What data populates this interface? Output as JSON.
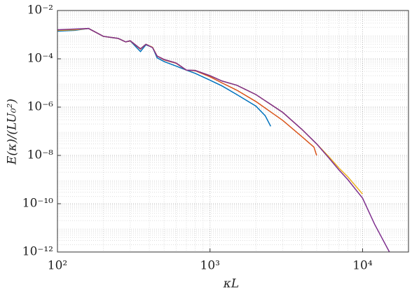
{
  "chart_data": {
    "type": "line",
    "x_label": "κL",
    "y_label": "E(κ)/(LU₀²)",
    "xscale": "log",
    "yscale": "log",
    "grid": true,
    "minor_grid": true,
    "xlim": [
      100,
      20000
    ],
    "xticks": [
      {
        "value": 100,
        "label": "10²"
      },
      {
        "value": 1000,
        "label": "10³"
      },
      {
        "value": 10000,
        "label": "10⁴"
      }
    ],
    "ylim": [
      1e-12,
      0.01
    ],
    "yticks": [
      {
        "value": 1e-12,
        "label": "10⁻¹²"
      },
      {
        "value": 1e-10,
        "label": "10⁻¹⁰"
      },
      {
        "value": 1e-08,
        "label": "10⁻⁸"
      },
      {
        "value": 1e-06,
        "label": "10⁻⁶"
      },
      {
        "value": 0.0001,
        "label": "10⁻⁴"
      },
      {
        "value": 0.01,
        "label": "10⁻²"
      }
    ],
    "series": [
      {
        "color": "#0072BD",
        "x": [
          100,
          130,
          160,
          200,
          250,
          280,
          300,
          350,
          380,
          420,
          450,
          500,
          600,
          700,
          800,
          1000,
          1200,
          1500,
          2000,
          2300,
          2500
        ],
        "values": [
          0.0014,
          0.0015,
          0.0018,
          0.00085,
          0.0007,
          0.0005,
          0.00055,
          0.0002,
          0.00038,
          0.0003,
          0.00011,
          7.7e-05,
          5e-05,
          3.4e-05,
          2.5e-05,
          1.3e-05,
          7.5e-06,
          3.3e-06,
          1.1e-06,
          4.4e-07,
          1.6e-07
        ]
      },
      {
        "color": "#D95319",
        "x": [
          100,
          130,
          160,
          200,
          250,
          280,
          300,
          350,
          380,
          420,
          450,
          500,
          600,
          700,
          800,
          1000,
          1200,
          1500,
          2000,
          3000,
          4000,
          4800,
          5000
        ],
        "values": [
          0.0015,
          0.0016,
          0.0018,
          0.00085,
          0.0007,
          0.0005,
          0.00055,
          0.00025,
          0.0004,
          0.0003,
          0.00013,
          9e-05,
          6.5e-05,
          3.4e-05,
          3.2e-05,
          1.8e-05,
          1e-05,
          5e-06,
          1.7e-06,
          2.8e-07,
          6e-08,
          2.2e-08,
          1e-08
        ]
      },
      {
        "color": "#EDB120",
        "x": [
          100,
          130,
          160,
          200,
          250,
          280,
          300,
          350,
          380,
          420,
          450,
          500,
          600,
          700,
          800,
          1000,
          1200,
          1500,
          2000,
          3000,
          4000,
          5000,
          6000,
          7000,
          8000,
          10000
        ],
        "values": [
          0.0015,
          0.0016,
          0.0018,
          0.00085,
          0.0007,
          0.0005,
          0.00056,
          0.00026,
          0.0004,
          0.0003,
          0.00013,
          9.4e-05,
          6.7e-05,
          3.4e-05,
          3.3e-05,
          2e-05,
          1.2e-05,
          8e-06,
          3.3e-06,
          6e-07,
          1.2e-07,
          3e-08,
          9e-09,
          3e-09,
          1.3e-09,
          2.5e-10
        ]
      },
      {
        "color": "#7E2F8E",
        "x": [
          100,
          130,
          160,
          200,
          250,
          280,
          300,
          350,
          380,
          420,
          450,
          500,
          600,
          700,
          800,
          1000,
          1200,
          1500,
          2000,
          3000,
          4000,
          5000,
          6000,
          7000,
          8000,
          10000,
          12000,
          15000
        ],
        "values": [
          0.0016,
          0.0017,
          0.0018,
          0.00085,
          0.0007,
          0.0005,
          0.00056,
          0.00026,
          0.0004,
          0.00029,
          0.00013,
          9.4e-05,
          6.7e-05,
          3.4e-05,
          3.3e-05,
          2e-05,
          1.2e-05,
          8e-06,
          3.3e-06,
          6e-07,
          1.2e-07,
          3e-08,
          8e-09,
          2.5e-09,
          1e-09,
          1.7e-10,
          1.4e-11,
          1e-12
        ]
      }
    ]
  }
}
